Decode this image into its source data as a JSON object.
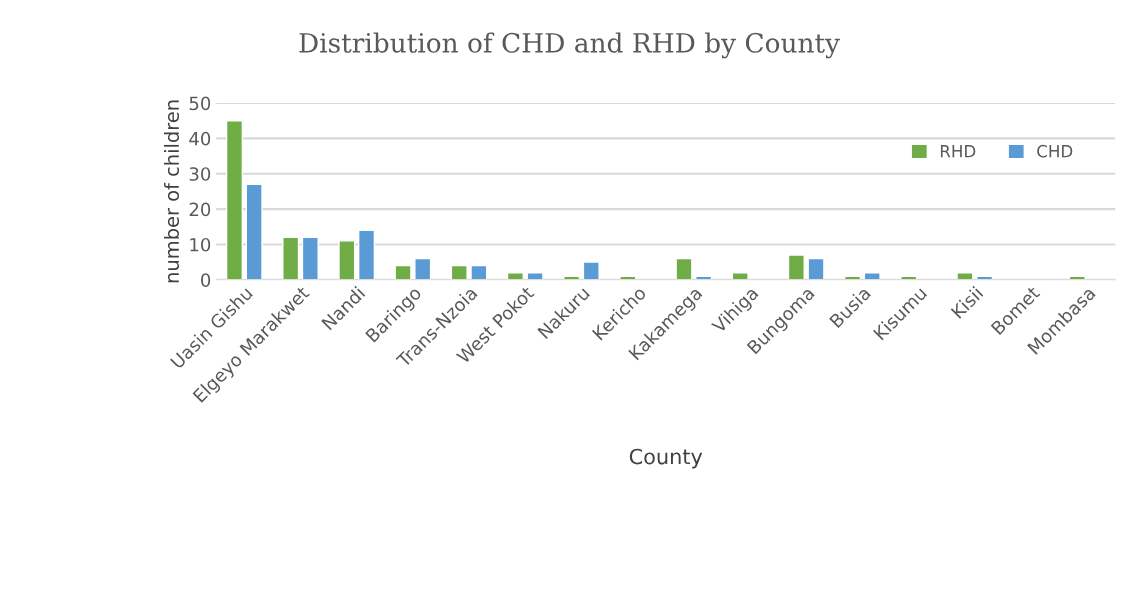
{
  "chart_data": {
    "type": "bar",
    "title": "Distribution of CHD and RHD by County",
    "xlabel": "County",
    "ylabel": "number of children",
    "categories": [
      "Uasin Gishu",
      "Elgeyo Marakwet",
      "Nandi",
      "Baringo",
      "Trans-Nzoia",
      "West Pokot",
      "Nakuru",
      "Kericho",
      "Kakamega",
      "Vihiga",
      "Bungoma",
      "Busia",
      "Kisumu",
      "Kisii",
      "Bomet",
      "Mombasa"
    ],
    "series": [
      {
        "name": "RHD",
        "color": "#70ad47",
        "values": [
          45,
          12,
          11,
          4,
          4,
          2,
          1,
          1,
          6,
          2,
          7,
          1,
          1,
          2,
          null,
          1
        ]
      },
      {
        "name": "CHD",
        "color": "#5b9bd5",
        "values": [
          27,
          12,
          14,
          6,
          4,
          2,
          5,
          null,
          1,
          null,
          6,
          2,
          null,
          1,
          null,
          null
        ]
      }
    ],
    "ylim": [
      0,
      50
    ],
    "yticks": [
      0,
      10,
      20,
      30,
      40,
      50
    ],
    "grid": "y",
    "legend": "top right"
  }
}
